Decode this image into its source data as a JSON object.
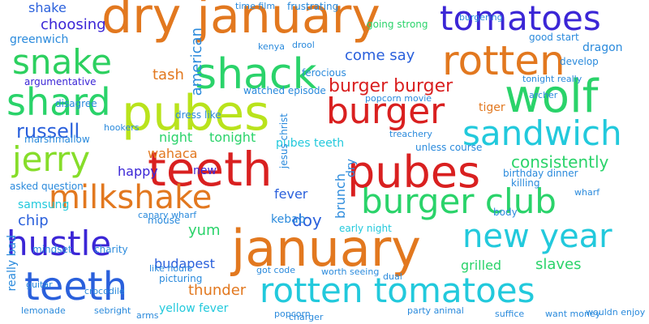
{
  "words": [
    {
      "text": "dry january",
      "color": "#e2781f"
    },
    {
      "text": "tomatoes",
      "color": "#3b26d6"
    },
    {
      "text": "rotten",
      "color": "#e2781f"
    },
    {
      "text": "snake",
      "color": "#2cd05f"
    },
    {
      "text": "shack",
      "color": "#2ad36a"
    },
    {
      "text": "shard",
      "color": "#2ad36a"
    },
    {
      "text": "pubes",
      "color": "#b9e31c"
    },
    {
      "text": "wolf",
      "color": "#2ad36a"
    },
    {
      "text": "burger",
      "color": "#d92020"
    },
    {
      "text": "sandwich",
      "color": "#22c9dc"
    },
    {
      "text": "jerry",
      "color": "#86dd2a"
    },
    {
      "text": "teeth",
      "color": "#d92020"
    },
    {
      "text": "pubes",
      "color": "#d92020"
    },
    {
      "text": "milkshake",
      "color": "#e2781f"
    },
    {
      "text": "burger club",
      "color": "#2ad36a"
    },
    {
      "text": "new year",
      "color": "#22c9dc"
    },
    {
      "text": "hustle",
      "color": "#3b26d6"
    },
    {
      "text": "january",
      "color": "#e2781f"
    },
    {
      "text": "teeth",
      "color": "#2a60dc"
    },
    {
      "text": "rotten tomatoes",
      "color": "#22c9dc"
    },
    {
      "text": "shake",
      "color": "#2a60dc"
    },
    {
      "text": "choosing",
      "color": "#3b26d6"
    },
    {
      "text": "greenwich",
      "color": "#2a8adc"
    },
    {
      "text": "tash",
      "color": "#e2781f"
    },
    {
      "text": "come say",
      "color": "#2a60dc"
    },
    {
      "text": "burger burger",
      "color": "#d92020"
    },
    {
      "text": "russell",
      "color": "#2a60dc"
    },
    {
      "text": "argumentative",
      "color": "#3b26d6"
    },
    {
      "text": "marshmallow",
      "color": "#2a8adc"
    },
    {
      "text": "night",
      "color": "#2ad36a"
    },
    {
      "text": "tonight",
      "color": "#2ad36a"
    },
    {
      "text": "wahaca",
      "color": "#e2781f"
    },
    {
      "text": "happy",
      "color": "#3b26d6"
    },
    {
      "text": "new",
      "color": "#3b26d6"
    },
    {
      "text": "consistently",
      "color": "#2ad36a"
    },
    {
      "text": "pubes teeth",
      "color": "#22c9dc"
    },
    {
      "text": "fever",
      "color": "#2a60dc"
    },
    {
      "text": "doy",
      "color": "#2a60dc"
    },
    {
      "text": "yum",
      "color": "#2ad36a"
    },
    {
      "text": "chip",
      "color": "#2a60dc"
    },
    {
      "text": "samsung",
      "color": "#22c9dc"
    },
    {
      "text": "budapest",
      "color": "#2a60dc"
    },
    {
      "text": "thunder",
      "color": "#e2781f"
    },
    {
      "text": "yellow fever",
      "color": "#22c9dc"
    },
    {
      "text": "grilled",
      "color": "#2ad36a"
    },
    {
      "text": "slaves",
      "color": "#2ad36a"
    },
    {
      "text": "frustrating",
      "color": "#2a8adc"
    },
    {
      "text": "going strong",
      "color": "#2ad36a"
    },
    {
      "text": "good start",
      "color": "#2a8adc"
    },
    {
      "text": "develop",
      "color": "#2a8adc"
    },
    {
      "text": "dragon",
      "color": "#2a8adc"
    },
    {
      "text": "tiger",
      "color": "#e2781f"
    },
    {
      "text": "kebab",
      "color": "#2a8adc"
    },
    {
      "text": "early night",
      "color": "#22c9dc"
    },
    {
      "text": "watched episode",
      "color": "#2a8adc"
    },
    {
      "text": "popcorn movie",
      "color": "#2a8adc"
    },
    {
      "text": "tonight really",
      "color": "#2a8adc"
    },
    {
      "text": "ferocious",
      "color": "#2a8adc"
    },
    {
      "text": "disagree",
      "color": "#2a8adc"
    },
    {
      "text": "dress like",
      "color": "#2a8adc"
    },
    {
      "text": "asked question",
      "color": "#2a8adc"
    },
    {
      "text": "mindset",
      "color": "#2a8adc"
    },
    {
      "text": "mouse",
      "color": "#2a8adc"
    },
    {
      "text": "charity",
      "color": "#2a8adc"
    },
    {
      "text": "picturing",
      "color": "#2a8adc"
    },
    {
      "text": "like hours",
      "color": "#2a8adc"
    },
    {
      "text": "hookers",
      "color": "#2a8adc"
    },
    {
      "text": "unless course",
      "color": "#2a8adc"
    },
    {
      "text": "birthday dinner",
      "color": "#2a8adc"
    },
    {
      "text": "killing",
      "color": "#2a8adc"
    },
    {
      "text": "treachery",
      "color": "#2a8adc"
    },
    {
      "text": "body",
      "color": "#2a8adc"
    },
    {
      "text": "wharf",
      "color": "#2a8adc"
    },
    {
      "text": "canary wharf",
      "color": "#2a8adc"
    },
    {
      "text": "got code",
      "color": "#2a8adc"
    },
    {
      "text": "worth seeing",
      "color": "#2a8adc"
    },
    {
      "text": "guitar",
      "color": "#2a8adc"
    },
    {
      "text": "crocodile",
      "color": "#2a8adc"
    },
    {
      "text": "lemonade",
      "color": "#2a8adc"
    },
    {
      "text": "sebright",
      "color": "#2a8adc"
    },
    {
      "text": "arms",
      "color": "#2a8adc"
    },
    {
      "text": "want money",
      "color": "#2a8adc"
    },
    {
      "text": "wouldn enjoy",
      "color": "#2a8adc"
    },
    {
      "text": "dual",
      "color": "#2a8adc"
    },
    {
      "text": "party animal",
      "color": "#2a8adc"
    },
    {
      "text": "suffice",
      "color": "#2a8adc"
    },
    {
      "text": "popcorn",
      "color": "#2a8adc"
    },
    {
      "text": "archer",
      "color": "#2a8adc"
    },
    {
      "text": "burgering",
      "color": "#2a8adc"
    },
    {
      "text": "drool",
      "color": "#2a8adc"
    },
    {
      "text": "kenya",
      "color": "#2a8adc"
    },
    {
      "text": "time film",
      "color": "#2a8adc"
    },
    {
      "text": "charger",
      "color": "#2a8adc"
    },
    {
      "text": "really bad",
      "color": "#2a8adc"
    },
    {
      "text": "american",
      "color": "#2a8adc"
    },
    {
      "text": "brunch",
      "color": "#2a8adc"
    },
    {
      "text": "dry",
      "color": "#2a8adc"
    },
    {
      "text": "jesus christ",
      "color": "#2a8adc"
    }
  ]
}
